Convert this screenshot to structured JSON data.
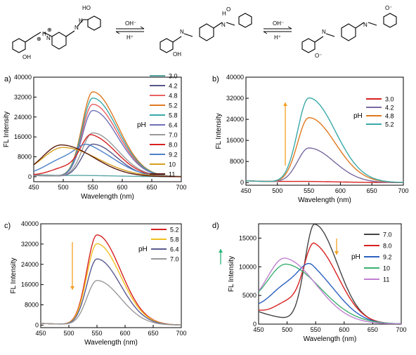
{
  "scheme": {
    "reagent_forward": "OH⁻",
    "reagent_reverse": "H⁺",
    "structures": [
      {
        "labels": [
          "HO",
          "OH",
          "H",
          "N",
          "⊕",
          "⊕",
          "H",
          "N"
        ]
      },
      {
        "labels": [
          "H",
          "O",
          "N",
          "N",
          "OH"
        ]
      },
      {
        "labels": [
          "O⁻",
          "N",
          "N",
          "O⁻"
        ]
      }
    ]
  },
  "colors": {
    "orange_arrow": "#f5a020",
    "green_arrow": "#2db37a"
  },
  "chart_data": [
    {
      "panel_label": "a)",
      "type": "line",
      "xlabel": "Wavelength (nm)",
      "ylabel": "FL Intensity",
      "legend_title": "pH",
      "xlim": [
        450,
        700
      ],
      "ylim": [
        -2000,
        40000
      ],
      "xticks": [
        450,
        500,
        550,
        600,
        650,
        700
      ],
      "yticks": [
        0,
        8000,
        16000,
        24000,
        32000,
        40000
      ],
      "grid": false,
      "legend_position": "right",
      "series": [
        {
          "name": "3.0",
          "color": "#5aa5a5",
          "peaks": [
            {
              "a": 300,
              "c": 550,
              "l": 40,
              "r": 50
            }
          ],
          "base": 900
        },
        {
          "name": "4.2",
          "color": "#55558a",
          "peaks": [
            {
              "a": 13000,
              "c": 550,
              "l": 18,
              "r": 40
            }
          ],
          "base": 500
        },
        {
          "name": "4.8",
          "color": "#e86060",
          "peaks": [
            {
              "a": 29000,
              "c": 550,
              "l": 18,
              "r": 42
            }
          ],
          "base": 600
        },
        {
          "name": "5.2",
          "color": "#e07820",
          "peaks": [
            {
              "a": 34000,
              "c": 550,
              "l": 18,
              "r": 42
            }
          ],
          "base": 600
        },
        {
          "name": "5.8",
          "color": "#3aa8a8",
          "peaks": [
            {
              "a": 31500,
              "c": 550,
              "l": 18,
              "r": 42
            }
          ],
          "base": 600
        },
        {
          "name": "6.4",
          "color": "#7070b8",
          "peaks": [
            {
              "a": 26500,
              "c": 550,
              "l": 18,
              "r": 42
            }
          ],
          "base": 600
        },
        {
          "name": "7.0",
          "color": "#999999",
          "peaks": [
            {
              "a": 17500,
              "c": 550,
              "l": 18,
              "r": 42
            }
          ],
          "base": 600
        },
        {
          "name": "8.0",
          "color": "#d82020",
          "peaks": [
            {
              "a": 16000,
              "c": 548,
              "l": 18,
              "r": 42
            },
            {
              "a": 3500,
              "c": 505,
              "l": 25,
              "r": 25
            }
          ],
          "base": 600
        },
        {
          "name": "9.2",
          "color": "#4a80c8",
          "peaks": [
            {
              "a": 10500,
              "c": 545,
              "l": 22,
              "r": 45
            },
            {
              "a": 6500,
              "c": 500,
              "l": 30,
              "r": 30
            }
          ],
          "base": 600
        },
        {
          "name": "10",
          "color": "#d4a020",
          "peaks": [
            {
              "a": 11500,
              "c": 500,
              "l": 35,
              "r": 60
            }
          ],
          "base": 600
        },
        {
          "name": "11",
          "color": "#5a1a10",
          "peaks": [
            {
              "a": 12500,
              "c": 497,
              "l": 32,
              "r": 55
            }
          ],
          "base": 600
        }
      ]
    },
    {
      "panel_label": "b)",
      "type": "line",
      "xlabel": "Wavelength (nm)",
      "ylabel": "FL Intensity",
      "legend_title": "pH",
      "xlim": [
        450,
        700
      ],
      "ylim": [
        -1000,
        40000
      ],
      "xticks": [
        450,
        500,
        550,
        600,
        650,
        700
      ],
      "yticks": [
        0,
        8000,
        16000,
        24000,
        32000,
        40000
      ],
      "grid": false,
      "legend_position": "right",
      "series": [
        {
          "name": "3.0",
          "color": "#d82020",
          "peaks": [
            {
              "a": 300,
              "c": 550,
              "l": 40,
              "r": 50
            }
          ],
          "base": 700
        },
        {
          "name": "4.2",
          "color": "#7a6aa0",
          "peaks": [
            {
              "a": 13000,
              "c": 550,
              "l": 18,
              "r": 40
            }
          ],
          "base": 700
        },
        {
          "name": "4.8",
          "color": "#e07820",
          "peaks": [
            {
              "a": 24500,
              "c": 550,
              "l": 18,
              "r": 42
            }
          ],
          "base": 700
        },
        {
          "name": "5.2",
          "color": "#3aa8a8",
          "peaks": [
            {
              "a": 32000,
              "c": 550,
              "l": 18,
              "r": 42
            }
          ],
          "base": 700
        }
      ]
    },
    {
      "panel_label": "c)",
      "type": "line",
      "xlabel": "Wavelength (nm)",
      "ylabel": "FL Intensity",
      "legend_title": "pH",
      "xlim": [
        450,
        700
      ],
      "ylim": [
        -1000,
        40000
      ],
      "xticks": [
        450,
        500,
        550,
        600,
        650,
        700
      ],
      "yticks": [
        0,
        8000,
        16000,
        24000,
        32000,
        40000
      ],
      "grid": false,
      "legend_position": "right",
      "series": [
        {
          "name": "5.2",
          "color": "#d82020",
          "peaks": [
            {
              "a": 35500,
              "c": 550,
              "l": 18,
              "r": 42
            }
          ],
          "base": 700
        },
        {
          "name": "5.8",
          "color": "#f0c020",
          "peaks": [
            {
              "a": 32000,
              "c": 550,
              "l": 18,
              "r": 42
            }
          ],
          "base": 700
        },
        {
          "name": "6.4",
          "color": "#5a5a90",
          "peaks": [
            {
              "a": 26000,
              "c": 550,
              "l": 18,
              "r": 42
            }
          ],
          "base": 700
        },
        {
          "name": "7.0",
          "color": "#999999",
          "peaks": [
            {
              "a": 17500,
              "c": 550,
              "l": 18,
              "r": 42
            }
          ],
          "base": 700
        }
      ]
    },
    {
      "panel_label": "d)",
      "type": "line",
      "xlabel": "Wavelength (nm)",
      "ylabel": "FL Intensity",
      "legend_title": "pH",
      "xlim": [
        450,
        700
      ],
      "ylim": [
        0,
        17500
      ],
      "xticks": [
        450,
        500,
        550,
        600,
        650,
        700
      ],
      "yticks": [
        0,
        5000,
        10000,
        15000
      ],
      "grid": false,
      "legend_position": "right",
      "series": [
        {
          "name": "7.0",
          "color": "#444444",
          "peaks": [
            {
              "a": 17000,
              "c": 548,
              "l": 17,
              "r": 40
            }
          ],
          "base": 2200
        },
        {
          "name": "8.0",
          "color": "#d82020",
          "peaks": [
            {
              "a": 13000,
              "c": 548,
              "l": 18,
              "r": 42
            },
            {
              "a": 3000,
              "c": 505,
              "l": 25,
              "r": 25
            }
          ],
          "base": 2200
        },
        {
          "name": "9.2",
          "color": "#2a60c0",
          "peaks": [
            {
              "a": 8000,
              "c": 545,
              "l": 22,
              "r": 45
            },
            {
              "a": 5500,
              "c": 500,
              "l": 30,
              "r": 30
            }
          ],
          "base": 2200
        },
        {
          "name": "10",
          "color": "#3ab070",
          "peaks": [
            {
              "a": 9500,
              "c": 500,
              "l": 35,
              "r": 60
            }
          ],
          "base": 2200
        },
        {
          "name": "11",
          "color": "#c080d0",
          "peaks": [
            {
              "a": 10500,
              "c": 497,
              "l": 32,
              "r": 55
            }
          ],
          "base": 2200
        }
      ]
    }
  ]
}
